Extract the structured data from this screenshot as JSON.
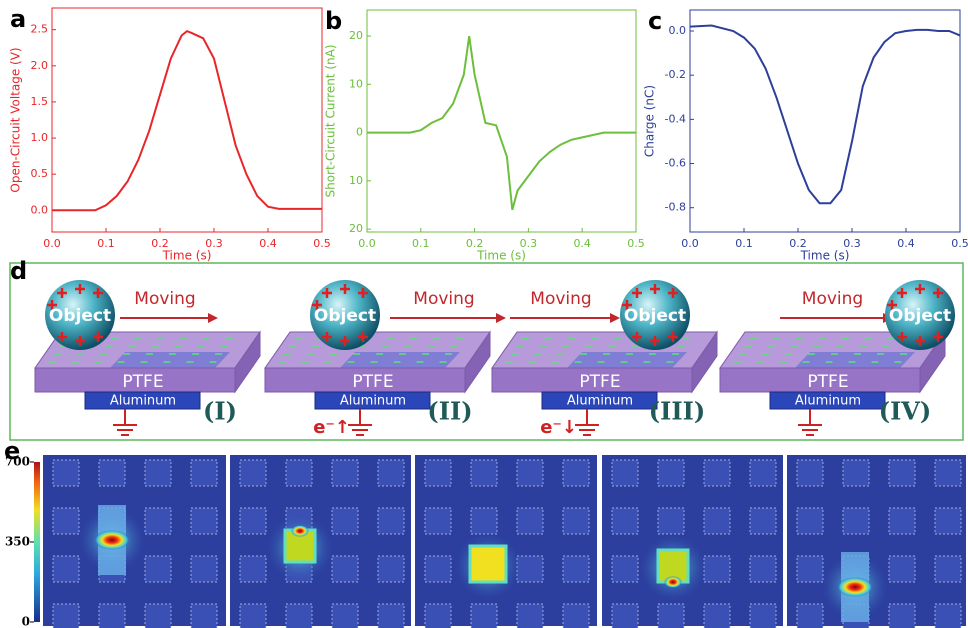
{
  "chart_data": [
    {
      "type": "line",
      "panel_label": "a",
      "x_label": "Time (s)",
      "y_label": "Open-Circuit Voltage (V)",
      "color": "#e8262a",
      "xlim": [
        0,
        0.5
      ],
      "xticks": [
        {
          "value": 0,
          "label": "0.0"
        },
        0.1,
        0.2,
        0.3,
        0.4,
        0.5
      ],
      "ylim": [
        -0.3,
        2.8
      ],
      "yticks": [
        {
          "value": 0,
          "label": "0.0"
        },
        0.5,
        {
          "value": 1,
          "label": "1.0"
        },
        1.5,
        {
          "value": 2,
          "label": "2.0"
        },
        2.5
      ],
      "x": [
        0,
        0.02,
        0.04,
        0.06,
        0.08,
        0.1,
        0.12,
        0.14,
        0.16,
        0.18,
        0.2,
        0.22,
        0.24,
        0.25,
        0.26,
        0.28,
        0.3,
        0.32,
        0.34,
        0.36,
        0.38,
        0.4,
        0.42,
        0.44,
        0.46,
        0.48,
        0.5
      ],
      "values": [
        0,
        0,
        0,
        0,
        0,
        0.07,
        0.2,
        0.4,
        0.7,
        1.1,
        1.6,
        2.1,
        2.42,
        2.48,
        2.45,
        2.38,
        2.1,
        1.5,
        0.9,
        0.5,
        0.2,
        0.05,
        0.02,
        0.02,
        0.02,
        0.02,
        0.02
      ]
    },
    {
      "type": "line",
      "panel_label": "b",
      "x_label": "Time (s)",
      "y_label": "Short-Circuit Current (nA)",
      "color": "#6cbf3c",
      "xlim": [
        0,
        0.5
      ],
      "xticks": [
        {
          "value": 0,
          "label": "0.0"
        },
        0.1,
        0.2,
        0.3,
        0.4,
        0.5
      ],
      "ylim": [
        -20.6,
        25.4
      ],
      "yticks": [
        {
          "value": -20,
          "label": "20"
        },
        {
          "value": -10,
          "label": "10"
        },
        0,
        10,
        20
      ],
      "x": [
        0,
        0.02,
        0.04,
        0.06,
        0.08,
        0.1,
        0.12,
        0.14,
        0.16,
        0.18,
        0.19,
        0.2,
        0.22,
        0.24,
        0.26,
        0.27,
        0.28,
        0.3,
        0.32,
        0.34,
        0.36,
        0.38,
        0.4,
        0.42,
        0.44,
        0.46,
        0.48,
        0.5
      ],
      "values": [
        0,
        0,
        0,
        0,
        0,
        0.5,
        2,
        3,
        6,
        12,
        20,
        12,
        2,
        1.5,
        -5,
        -16,
        -12,
        -9,
        -6,
        -4,
        -2.5,
        -1.5,
        -1,
        -0.5,
        0,
        0,
        0,
        0
      ]
    },
    {
      "type": "line",
      "panel_label": "c",
      "x_label": "Time (s)",
      "y_label": "Charge (nC)",
      "color": "#2d3f9a",
      "xlim": [
        0,
        0.5
      ],
      "xticks": [
        {
          "value": 0,
          "label": "0.0"
        },
        0.1,
        0.2,
        0.3,
        0.4,
        0.5
      ],
      "ylim": [
        -0.91,
        0.095
      ],
      "yticks": [
        {
          "value": 0,
          "label": "0.0"
        },
        -0.2,
        -0.4,
        -0.6,
        -0.8
      ],
      "x": [
        0,
        0.04,
        0.08,
        0.1,
        0.12,
        0.14,
        0.16,
        0.18,
        0.2,
        0.22,
        0.24,
        0.26,
        0.28,
        0.3,
        0.32,
        0.34,
        0.36,
        0.38,
        0.4,
        0.42,
        0.44,
        0.46,
        0.48,
        0.5
      ],
      "values": [
        0.02,
        0.025,
        0,
        -0.03,
        -0.08,
        -0.17,
        -0.3,
        -0.45,
        -0.6,
        -0.72,
        -0.78,
        -0.78,
        -0.72,
        -0.5,
        -0.25,
        -0.12,
        -0.05,
        -0.01,
        0,
        0.005,
        0.005,
        0,
        0,
        -0.02
      ]
    }
  ],
  "diagram": {
    "panel_label": "d",
    "stages": [
      {
        "object": "Object",
        "motion": "Moving",
        "dielectric": "PTFE",
        "electrode": "Aluminum",
        "label": "(I)"
      },
      {
        "object": "Object",
        "motion": "Moving",
        "dielectric": "PTFE",
        "electrode": "Aluminum",
        "label": "(II)",
        "electron": "e⁻↑"
      },
      {
        "object": "Object",
        "motion": "Moving",
        "dielectric": "PTFE",
        "electrode": "Aluminum",
        "label": "(III)",
        "electron": "e⁻↓"
      },
      {
        "object": "Object",
        "motion": "Moving",
        "dielectric": "PTFE",
        "electrode": "Aluminum",
        "label": "(IV)"
      }
    ]
  },
  "field_maps": {
    "panel_label": "e",
    "colorbar": {
      "range": [
        0,
        700
      ],
      "ticks": [
        0,
        350,
        700
      ]
    }
  }
}
